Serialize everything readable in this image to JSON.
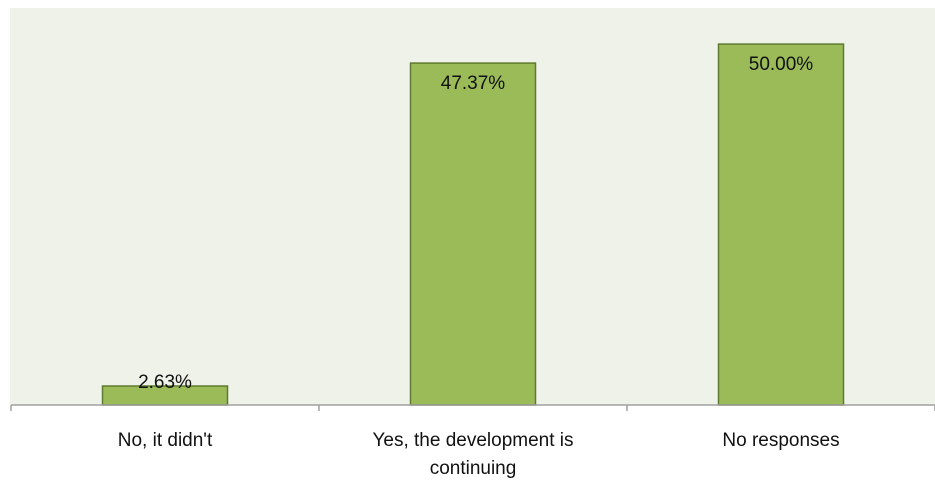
{
  "chart_data": {
    "type": "bar",
    "categories": [
      "No, it didn't",
      "Yes, the development is continuing",
      "No responses"
    ],
    "category_lines": [
      [
        "No, it didn't"
      ],
      [
        "Yes, the development is",
        "continuing"
      ],
      [
        "No responses"
      ]
    ],
    "values": [
      2.63,
      47.37,
      50.0
    ],
    "data_labels": [
      "2.63%",
      "47.37%",
      "50.00%"
    ],
    "ylim": [
      0,
      55
    ],
    "grid": false,
    "legend": "none",
    "title": "",
    "xlabel": "",
    "ylabel": "",
    "colors": {
      "plot_background": "#eef2e8",
      "bar_fill": "#9bbb59",
      "bar_stroke": "#5e7a2e",
      "axis": "#a0a0a0"
    }
  }
}
